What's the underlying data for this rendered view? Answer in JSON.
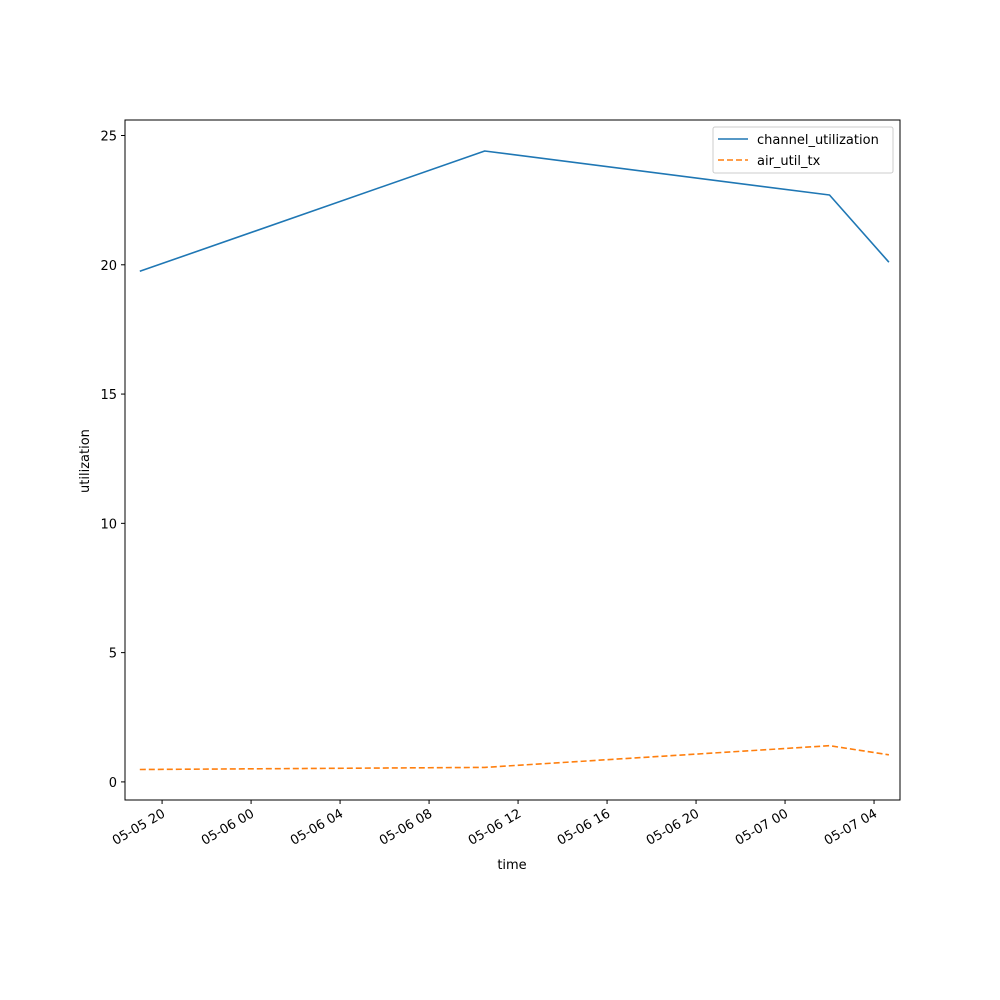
{
  "chart_data": {
    "type": "line",
    "title": "",
    "xlabel": "time",
    "ylabel": "utilization",
    "x_tick_labels": [
      "05-05 20",
      "05-06 00",
      "05-06 04",
      "05-06 08",
      "05-06 12",
      "05-06 16",
      "05-06 20",
      "05-07 00",
      "05-07 04"
    ],
    "y_tick_labels": [
      "0",
      "5",
      "10",
      "15",
      "20",
      "25"
    ],
    "y_ticks": [
      0,
      5,
      10,
      15,
      20,
      25
    ],
    "ylim": [
      -0.7,
      25.6
    ],
    "xlim": [
      "2024-05-05 18:20",
      "2024-05-07 05:10"
    ],
    "x_tick_values": [
      "2024-05-05 20:00",
      "2024-05-06 00:00",
      "2024-05-06 04:00",
      "2024-05-06 08:00",
      "2024-05-06 12:00",
      "2024-05-06 16:00",
      "2024-05-06 20:00",
      "2024-05-07 00:00",
      "2024-05-07 04:00"
    ],
    "grid": false,
    "legend_position": "top-right",
    "x": [
      "2024-05-05 19:00",
      "2024-05-06 10:30",
      "2024-05-07 02:00",
      "2024-05-07 04:40"
    ],
    "series": [
      {
        "name": "channel_utilization",
        "values": [
          19.75,
          24.4,
          22.7,
          20.1
        ],
        "color": "#1f77b4",
        "dash": "solid"
      },
      {
        "name": "air_util_tx",
        "values": [
          0.48,
          0.56,
          1.4,
          1.05
        ],
        "color": "#ff7f0e",
        "dash": "dashed"
      }
    ]
  }
}
